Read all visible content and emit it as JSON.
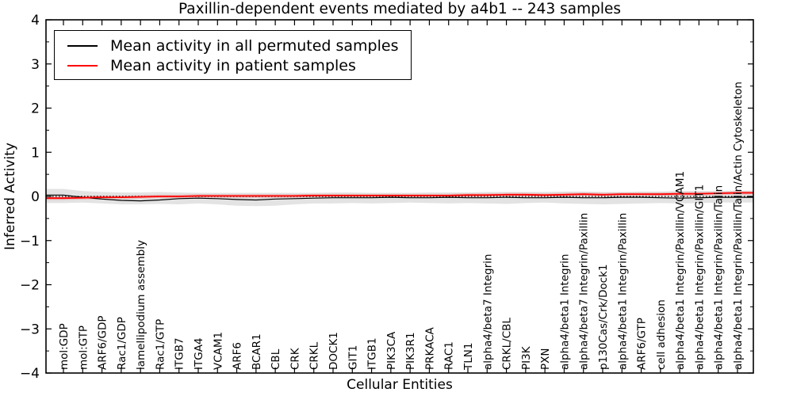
{
  "chart_data": {
    "type": "line",
    "title": "Paxillin-dependent events mediated by a4b1 -- 243 samples",
    "xlabel": "Cellular Entities",
    "ylabel": "Inferred Activity",
    "ylim": [
      -4,
      4
    ],
    "yticks": [
      -4,
      -3,
      -2,
      -1,
      0,
      1,
      2,
      3,
      4
    ],
    "grid": false,
    "legend_position": "upper left",
    "sample_count_in_title": 243,
    "categories": [
      "mol:GDP",
      "mol:GTP",
      "ARF6/GDP",
      "Rac1/GDP",
      "lamellipodium assembly",
      "Rac1/GTP",
      "ITGB7",
      "ITGA4",
      "VCAM1",
      "ARF6",
      "BCAR1",
      "CBL",
      "CRK",
      "CRKL",
      "DOCK1",
      "GIT1",
      "ITGB1",
      "PIK3CA",
      "PIK3R1",
      "PRKACA",
      "RAC1",
      "TLN1",
      "alpha4/beta7 Integrin",
      "CRKL/CBL",
      "PI3K",
      "PXN",
      "alpha4/beta1 Integrin",
      "alpha4/beta7 Integrin/Paxillin",
      "p130Cas/Crk/Dock1",
      "alpha4/beta1 Integrin/Paxillin",
      "ARF6/GTP",
      "cell adhesion",
      "alpha4/beta1 Integrin/Paxillin/VCAM1",
      "alpha4/beta1 Integrin/Paxillin/GIT1",
      "alpha4/beta1 Integrin/Paxillin/Talin",
      "alpha4/beta1 Integrin/Paxillin/Talin/Actin Cytoskeleton"
    ],
    "series": [
      {
        "name": "Mean activity in all permuted samples",
        "color": "#000000",
        "values": [
          0.03,
          -0.02,
          -0.06,
          -0.09,
          -0.1,
          -0.08,
          -0.05,
          -0.04,
          -0.05,
          -0.07,
          -0.08,
          -0.06,
          -0.05,
          -0.04,
          -0.03,
          -0.03,
          -0.03,
          -0.02,
          -0.03,
          -0.03,
          -0.02,
          -0.03,
          -0.03,
          -0.02,
          -0.03,
          -0.03,
          -0.02,
          -0.03,
          -0.03,
          -0.02,
          -0.02,
          -0.03,
          -0.04,
          -0.03,
          -0.02,
          -0.02
        ]
      },
      {
        "name": "Mean activity in patient samples",
        "color": "#ff0000",
        "values": [
          -0.04,
          -0.03,
          -0.02,
          -0.02,
          -0.01,
          0.0,
          0.0,
          0.01,
          0.01,
          0.01,
          0.01,
          0.01,
          0.01,
          0.02,
          0.02,
          0.02,
          0.02,
          0.02,
          0.02,
          0.02,
          0.02,
          0.03,
          0.03,
          0.04,
          0.04,
          0.03,
          0.04,
          0.05,
          0.04,
          0.05,
          0.05,
          0.05,
          0.06,
          0.06,
          0.07,
          0.08
        ]
      }
    ],
    "bands": [
      {
        "name": "permuted-samples-range",
        "color": "#999999",
        "opacity": 0.28,
        "upper": [
          0.17,
          0.12,
          0.1,
          0.09,
          0.09,
          0.1,
          0.09,
          0.08,
          0.08,
          0.08,
          0.08,
          0.08,
          0.08,
          0.08,
          0.09,
          0.09,
          0.08,
          0.08,
          0.08,
          0.09,
          0.09,
          0.09,
          0.1,
          0.1,
          0.1,
          0.1,
          0.11,
          0.11,
          0.1,
          0.1,
          0.11,
          0.11,
          0.12,
          0.12,
          0.12,
          0.13
        ],
        "lower": [
          -0.15,
          -0.14,
          -0.16,
          -0.18,
          -0.18,
          -0.17,
          -0.18,
          -0.16,
          -0.18,
          -0.21,
          -0.22,
          -0.21,
          -0.18,
          -0.16,
          -0.16,
          -0.15,
          -0.16,
          -0.15,
          -0.14,
          -0.15,
          -0.16,
          -0.15,
          -0.16,
          -0.17,
          -0.15,
          -0.14,
          -0.16,
          -0.17,
          -0.18,
          -0.17,
          -0.16,
          -0.15,
          -0.16,
          -0.15,
          -0.14,
          -0.14
        ]
      },
      {
        "name": "patient-samples-range",
        "color": "#ff0000",
        "opacity": 0.16,
        "upper": [
          0.0,
          0.01,
          0.02,
          0.02,
          0.03,
          0.04,
          0.04,
          0.05,
          0.05,
          0.05,
          0.05,
          0.05,
          0.05,
          0.06,
          0.06,
          0.06,
          0.06,
          0.06,
          0.06,
          0.06,
          0.06,
          0.07,
          0.07,
          0.08,
          0.08,
          0.07,
          0.08,
          0.09,
          0.08,
          0.09,
          0.09,
          0.09,
          0.1,
          0.1,
          0.11,
          0.12
        ],
        "lower": [
          -0.08,
          -0.07,
          -0.06,
          -0.06,
          -0.05,
          -0.04,
          -0.04,
          -0.03,
          -0.03,
          -0.03,
          -0.03,
          -0.03,
          -0.03,
          -0.02,
          -0.02,
          -0.02,
          -0.02,
          -0.02,
          -0.02,
          -0.02,
          -0.02,
          -0.01,
          -0.01,
          0.0,
          0.0,
          -0.01,
          0.0,
          0.01,
          0.0,
          0.01,
          0.01,
          0.01,
          0.02,
          0.02,
          0.03,
          0.04
        ]
      }
    ],
    "zero_line": {
      "y": 0,
      "style": "dotted",
      "color": "#000000"
    }
  }
}
